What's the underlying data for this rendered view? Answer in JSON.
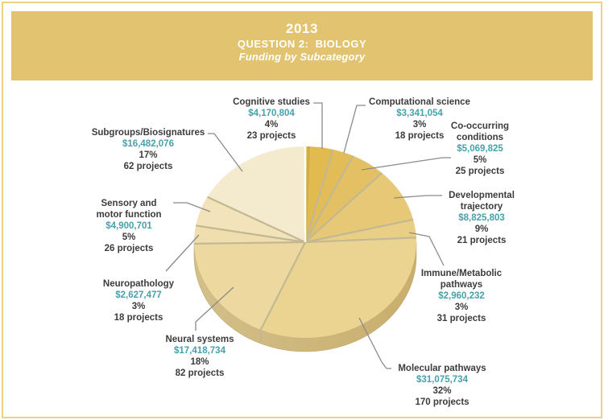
{
  "header": {
    "year": "2013",
    "title": "QUESTION 2:  BIOLOGY",
    "subtitle": "Funding by Subcategory"
  },
  "colors": {
    "banner": "#e2c370",
    "frame_border": "#ecd283",
    "label_text": "#3c3c3c",
    "amount_text": "#45a1aa",
    "separator": "#c2b893",
    "leader_line": "#8a8a8a",
    "rim_left": "#d3bf8a",
    "rim_right": "#c9ae6d",
    "rim_edge": "#bda871",
    "top_gap_side": "#d2ab45",
    "top_gap_white": "#fdfdf8"
  },
  "chart_data": {
    "type": "pie",
    "title": "2013 QUESTION 2: BIOLOGY — Funding by Subcategory",
    "direction": "clockwise",
    "start_angle_deg": 0,
    "legend": "none",
    "style": "3d-elliptical",
    "slices": [
      {
        "label": "Cognitive studies",
        "amount": "$4,170,804",
        "value": 4170804,
        "percent": "4%",
        "percent_value": 4,
        "projects": "23 projects",
        "projects_count": 23,
        "color": "#e1ba50"
      },
      {
        "label": "Computational science",
        "amount": "$3,341,054",
        "value": 3341054,
        "percent": "3%",
        "percent_value": 3,
        "projects": "18 projects",
        "projects_count": 18,
        "color": "#e2bc57"
      },
      {
        "label": "Co-occurring conditions",
        "amount": "$5,069,825",
        "value": 5069825,
        "percent": "5%",
        "percent_value": 5,
        "projects": "25 projects",
        "projects_count": 25,
        "color": "#e4c065"
      },
      {
        "label": "Developmental trajectory",
        "amount": "$8,825,803",
        "value": 8825803,
        "percent": "9%",
        "percent_value": 9,
        "projects": "21 projects",
        "projects_count": 21,
        "color": "#e7c877"
      },
      {
        "label": "Immune/Metabolic pathways",
        "amount": "$2,960,232",
        "value": 2960232,
        "percent": "3%",
        "percent_value": 3,
        "projects": "31 projects",
        "projects_count": 31,
        "color": "#e9cf85"
      },
      {
        "label": "Molecular pathways",
        "amount": "$31,075,734",
        "value": 31075734,
        "percent": "32%",
        "percent_value": 32,
        "projects": "170 projects",
        "projects_count": 170,
        "color": "#ebd391"
      },
      {
        "label": "Neural systems",
        "amount": "$17,418,734",
        "value": 17418734,
        "percent": "18%",
        "percent_value": 18,
        "projects": "82 projects",
        "projects_count": 82,
        "color": "#edd8a0"
      },
      {
        "label": "Neuropathology",
        "amount": "$2,627,477",
        "value": 2627477,
        "percent": "3%",
        "percent_value": 3,
        "projects": "18 projects",
        "projects_count": 18,
        "color": "#f0deae"
      },
      {
        "label": "Sensory and motor function",
        "amount": "$4,900,701",
        "value": 4900701,
        "percent": "5%",
        "percent_value": 5,
        "projects": "26 projects",
        "projects_count": 26,
        "color": "#f2e3bb"
      },
      {
        "label": "Subgroups/Biosignatures",
        "amount": "$16,482,076",
        "value": 16482076,
        "percent": "17%",
        "percent_value": 17,
        "projects": "62 projects",
        "projects_count": 62,
        "color": "#f4eacd"
      }
    ]
  }
}
